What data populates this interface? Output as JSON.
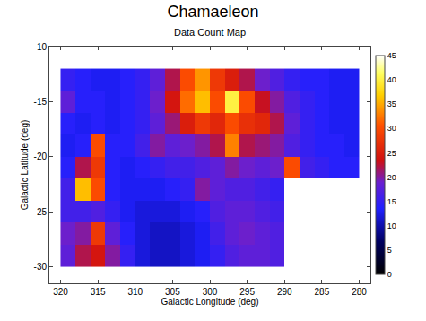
{
  "chart_data": {
    "type": "heatmap",
    "title": "Chamaeleon",
    "subtitle": "Data Count Map",
    "x_label": "Galactic Longitude (deg)",
    "y_label": "Galactic Latitude (deg)",
    "x": [
      281,
      283,
      285,
      287,
      289,
      291,
      293,
      295,
      297,
      299,
      301,
      303,
      305,
      307,
      309,
      311,
      313,
      315,
      317,
      319
    ],
    "y": [
      -29,
      -27,
      -25,
      -23,
      -21,
      -19,
      -17,
      -15,
      -13
    ],
    "z": [
      [
        null,
        null,
        null,
        null,
        null,
        17,
        18,
        18,
        17,
        15,
        13,
        12,
        11,
        11,
        12,
        15,
        20,
        24,
        22,
        18
      ],
      [
        null,
        null,
        null,
        null,
        null,
        17,
        18,
        19,
        18,
        16,
        13,
        12,
        11,
        11,
        12,
        14,
        18,
        28,
        20,
        19
      ],
      [
        null,
        null,
        null,
        null,
        null,
        16,
        17,
        18,
        18,
        17,
        14,
        13,
        12,
        12,
        12,
        13,
        15,
        17,
        16,
        16
      ],
      [
        null,
        null,
        null,
        null,
        null,
        15,
        16,
        17,
        17,
        18,
        20,
        15,
        14,
        13,
        13,
        13,
        14,
        30,
        36,
        16
      ],
      [
        14,
        14,
        15,
        16,
        30,
        19,
        18,
        19,
        20,
        18,
        17,
        16,
        16,
        15,
        14,
        13,
        14,
        28,
        22,
        14
      ],
      [
        13,
        14,
        14,
        15,
        17,
        20,
        21,
        22,
        33,
        22,
        20,
        19,
        18,
        20,
        16,
        14,
        14,
        30,
        14,
        13
      ],
      [
        13,
        13,
        14,
        15,
        18,
        22,
        26,
        27,
        30,
        26,
        28,
        25,
        21,
        18,
        15,
        14,
        13,
        14,
        13,
        14
      ],
      [
        13,
        13,
        14,
        15,
        17,
        20,
        23,
        30,
        40,
        30,
        36,
        32,
        24,
        19,
        15,
        14,
        13,
        14,
        14,
        18
      ],
      [
        13,
        13,
        14,
        14,
        15,
        17,
        19,
        22,
        25,
        28,
        34,
        30,
        22,
        18,
        15,
        14,
        13,
        13,
        14,
        15
      ]
    ],
    "zlim": [
      0,
      45
    ],
    "zticks": [
      0,
      5,
      10,
      15,
      20,
      25,
      30,
      35,
      40,
      45
    ],
    "xlim": [
      321.5,
      278.5
    ],
    "xticks": [
      320,
      315,
      310,
      305,
      300,
      295,
      290,
      285,
      280
    ],
    "ylim": [
      -31.5,
      -10
    ],
    "yticks": [
      -30,
      -25,
      -20,
      -15,
      -10
    ],
    "grid": false
  }
}
